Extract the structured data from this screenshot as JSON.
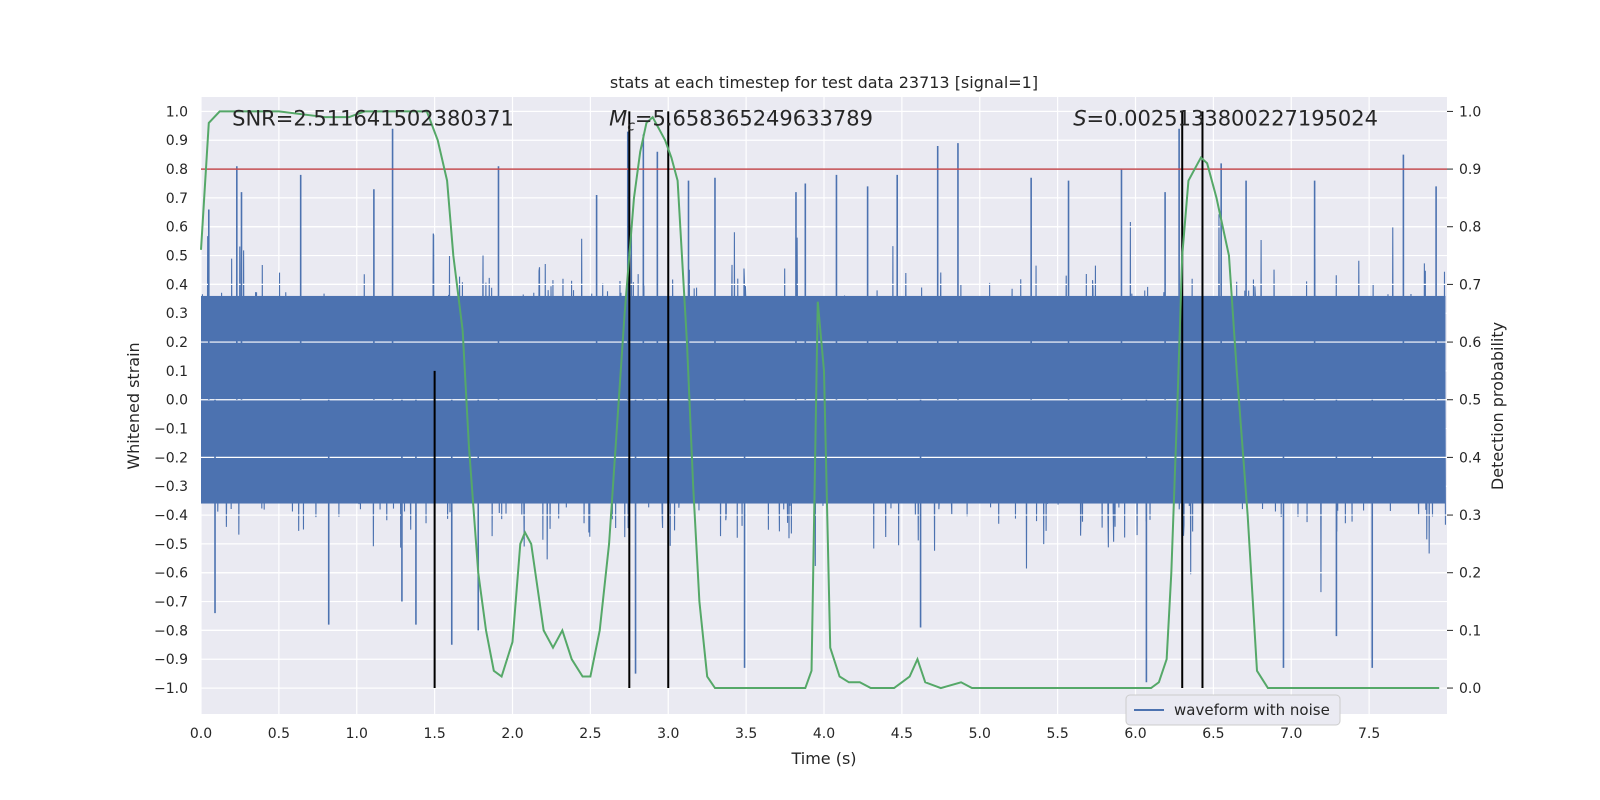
{
  "chart_data": {
    "type": "line",
    "title": "stats at each timestep for test data 23713 [signal=1]",
    "xlabel": "Time (s)",
    "ylabel_left": "Whitened strain",
    "ylabel_right": "Detection probability",
    "xlim": [
      0.0,
      8.0
    ],
    "ylim_left": [
      -1.09,
      1.05
    ],
    "ylim_right": [
      -0.045,
      1.025
    ],
    "xticks": [
      0.0,
      0.5,
      1.0,
      1.5,
      2.0,
      2.5,
      3.0,
      3.5,
      4.0,
      4.5,
      5.0,
      5.5,
      6.0,
      6.5,
      7.0,
      7.5
    ],
    "xtick_labels": [
      "0.0",
      "0.5",
      "1.0",
      "1.5",
      "2.0",
      "2.5",
      "3.0",
      "3.5",
      "4.0",
      "4.5",
      "5.0",
      "5.5",
      "6.0",
      "6.5",
      "7.0",
      "7.5"
    ],
    "yticks_left": [
      1.0,
      0.9,
      0.8,
      0.7,
      0.6,
      0.5,
      0.4,
      0.3,
      0.2,
      0.1,
      0.0,
      -0.1,
      -0.2,
      -0.3,
      -0.4,
      -0.5,
      -0.6,
      -0.7,
      -0.8,
      -0.9,
      -1.0
    ],
    "ytick_labels_left": [
      "1.0",
      "0.9",
      "0.8",
      "0.7",
      "0.6",
      "0.5",
      "0.4",
      "0.3",
      "0.2",
      "0.1",
      "0.0",
      "−0.1",
      "−0.2",
      "−0.3",
      "−0.4",
      "−0.5",
      "−0.6",
      "−0.7",
      "−0.8",
      "−0.9",
      "−1.0"
    ],
    "yticks_right": [
      1.0,
      0.9,
      0.8,
      0.7,
      0.6,
      0.5,
      0.4,
      0.3,
      0.2,
      0.1,
      0.0
    ],
    "ytick_labels_right": [
      "1.0",
      "0.9",
      "0.8",
      "0.7",
      "0.6",
      "0.5",
      "0.4",
      "0.3",
      "0.2",
      "0.1",
      "0.0"
    ],
    "grid": true,
    "threshold": {
      "axis": "right",
      "value": 0.9,
      "color": "#c44e52"
    },
    "vertical_markers": {
      "color": "#000000",
      "x": [
        1.5,
        2.75,
        3.0,
        6.3,
        6.43
      ],
      "from_right": [
        0.0,
        0.0,
        0.0,
        0.0,
        0.0
      ],
      "to_right": [
        0.55,
        1.0,
        1.0,
        1.0,
        1.0
      ]
    },
    "annotations": [
      {
        "text": "SNR=2.511641502380371",
        "x": 0.2,
        "y": 0.975
      },
      {
        "text": "=5.658365249633789",
        "math_prefix": "M",
        "math_sub": "c",
        "x": 2.62,
        "y": 0.975
      },
      {
        "text": "=0.0025133800227195024",
        "math_prefix": "S",
        "x": 5.6,
        "y": 0.975
      }
    ],
    "series": [
      {
        "name": "waveform with noise",
        "axis": "left",
        "color": "#4c72b0",
        "kind": "dense_noise",
        "core_amplitude": 0.36,
        "typical_peak": 0.5,
        "time_range": [
          0.0,
          7.99
        ],
        "spike_times": [
          0.05,
          0.09,
          0.23,
          0.26,
          0.64,
          0.82,
          1.11,
          1.23,
          1.29,
          1.38,
          1.61,
          1.78,
          1.91,
          2.54,
          2.74,
          2.79,
          2.84,
          2.93,
          3.13,
          3.3,
          3.49,
          3.82,
          3.88,
          4.08,
          4.28,
          4.47,
          4.62,
          4.73,
          4.86,
          5.33,
          5.57,
          5.91,
          6.07,
          6.19,
          6.28,
          6.55,
          6.71,
          6.95,
          7.15,
          7.29,
          7.52,
          7.72,
          7.93
        ],
        "spike_values": [
          0.66,
          -0.74,
          0.81,
          0.72,
          0.78,
          -0.78,
          0.73,
          0.94,
          -0.7,
          -0.78,
          -0.85,
          -0.8,
          0.81,
          0.71,
          0.93,
          -0.95,
          0.92,
          0.86,
          0.76,
          0.77,
          -0.93,
          0.72,
          0.75,
          0.78,
          0.74,
          0.78,
          -0.79,
          0.88,
          0.89,
          0.77,
          0.76,
          0.8,
          -0.98,
          0.72,
          0.94,
          0.82,
          0.76,
          -0.93,
          0.76,
          -0.82,
          -0.93,
          0.85,
          0.74
        ]
      },
      {
        "name": "Detection probability",
        "axis": "right",
        "color": "#55a868",
        "x": [
          0.0,
          0.05,
          0.12,
          0.2,
          0.5,
          0.8,
          0.95,
          1.05,
          1.45,
          1.52,
          1.58,
          1.62,
          1.68,
          1.72,
          1.78,
          1.83,
          1.88,
          1.93,
          2.0,
          2.05,
          2.08,
          2.12,
          2.2,
          2.26,
          2.32,
          2.38,
          2.45,
          2.5,
          2.56,
          2.62,
          2.67,
          2.72,
          2.78,
          2.82,
          2.86,
          2.9,
          2.94,
          2.98,
          3.02,
          3.06,
          3.12,
          3.16,
          3.2,
          3.25,
          3.3,
          3.5,
          3.65,
          3.8,
          3.88,
          3.92,
          3.96,
          4.0,
          4.04,
          4.1,
          4.16,
          4.23,
          4.3,
          4.45,
          4.5,
          4.55,
          4.6,
          4.65,
          4.75,
          4.88,
          4.95,
          5.05,
          5.5,
          6.0,
          6.1,
          6.15,
          6.2,
          6.23,
          6.27,
          6.3,
          6.34,
          6.38,
          6.42,
          6.46,
          6.52,
          6.56,
          6.6,
          6.65,
          6.72,
          6.78,
          6.85,
          7.0,
          7.4,
          7.5,
          7.7,
          7.95
        ],
        "values": [
          0.76,
          0.98,
          1.0,
          1.0,
          1.0,
          0.99,
          0.99,
          1.0,
          1.0,
          0.95,
          0.88,
          0.75,
          0.62,
          0.42,
          0.2,
          0.1,
          0.03,
          0.02,
          0.08,
          0.25,
          0.27,
          0.25,
          0.1,
          0.07,
          0.1,
          0.05,
          0.02,
          0.02,
          0.1,
          0.25,
          0.45,
          0.65,
          0.85,
          0.93,
          0.98,
          0.99,
          0.97,
          0.95,
          0.92,
          0.88,
          0.6,
          0.35,
          0.15,
          0.02,
          0.0,
          0.0,
          0.0,
          0.0,
          0.0,
          0.03,
          0.67,
          0.55,
          0.07,
          0.02,
          0.01,
          0.01,
          0.0,
          0.0,
          0.01,
          0.02,
          0.05,
          0.01,
          0.0,
          0.01,
          0.0,
          0.0,
          0.0,
          0.0,
          0.0,
          0.01,
          0.05,
          0.2,
          0.5,
          0.75,
          0.88,
          0.9,
          0.92,
          0.91,
          0.85,
          0.8,
          0.75,
          0.55,
          0.3,
          0.03,
          0.0,
          0.0,
          0.0,
          0.0,
          0.0,
          0.0
        ]
      }
    ],
    "legend": {
      "position": "lower-right",
      "entries": [
        "waveform with noise"
      ]
    }
  }
}
